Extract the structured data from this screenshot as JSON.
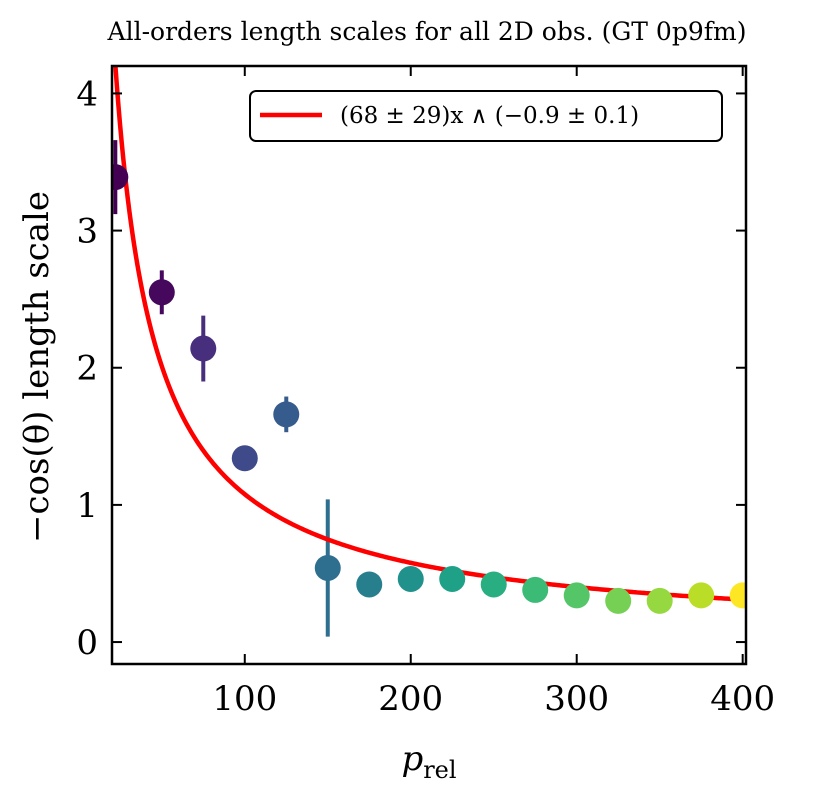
{
  "chart_data": {
    "type": "scatter",
    "title": "All-orders length scales for all 2D obs. (GT 0p9fm)",
    "xlabel": "p",
    "xlabel_sub": "rel",
    "ylabel": "−cos(θ) length scale",
    "xlim": [
      20,
      402
    ],
    "ylim": [
      -0.16,
      4.2
    ],
    "x_ticks": [
      100,
      200,
      300,
      400
    ],
    "y_ticks": [
      0,
      1,
      2,
      3,
      4
    ],
    "x_tick_labels": [
      "100",
      "200",
      "300",
      "400"
    ],
    "y_tick_labels": [
      "0",
      "1",
      "2",
      "3",
      "4"
    ],
    "grid": false,
    "legend_position": "top-right",
    "fit": {
      "label": "(68 ± 29)x ∧ (−0.9 ± 0.1)",
      "color": "#ff0000",
      "a": 68,
      "b": -0.9
    },
    "points": [
      {
        "x": 22,
        "y": 3.39,
        "err": 0.27,
        "color": "#440154"
      },
      {
        "x": 50,
        "y": 2.55,
        "err": 0.16,
        "color": "#46085c"
      },
      {
        "x": 75,
        "y": 2.14,
        "err": 0.24,
        "color": "#472f7d"
      },
      {
        "x": 100,
        "y": 1.34,
        "err": 0.0,
        "color": "#3e4a89"
      },
      {
        "x": 125,
        "y": 1.66,
        "err": 0.13,
        "color": "#365c8d"
      },
      {
        "x": 150,
        "y": 0.54,
        "err": 0.5,
        "color": "#2e6e8e"
      },
      {
        "x": 175,
        "y": 0.42,
        "err": 0.0,
        "color": "#277f8e"
      },
      {
        "x": 200,
        "y": 0.46,
        "err": 0.0,
        "color": "#21918c"
      },
      {
        "x": 225,
        "y": 0.46,
        "err": 0.0,
        "color": "#1fa188"
      },
      {
        "x": 250,
        "y": 0.42,
        "err": 0.0,
        "color": "#28ae80"
      },
      {
        "x": 275,
        "y": 0.38,
        "err": 0.0,
        "color": "#3bbb75"
      },
      {
        "x": 300,
        "y": 0.34,
        "err": 0.0,
        "color": "#55c667"
      },
      {
        "x": 325,
        "y": 0.3,
        "err": 0.0,
        "color": "#75d054"
      },
      {
        "x": 350,
        "y": 0.3,
        "err": 0.0,
        "color": "#95d840"
      },
      {
        "x": 375,
        "y": 0.34,
        "err": 0.0,
        "color": "#bade28"
      },
      {
        "x": 400,
        "y": 0.34,
        "err": 0.0,
        "color": "#fde725"
      }
    ]
  }
}
